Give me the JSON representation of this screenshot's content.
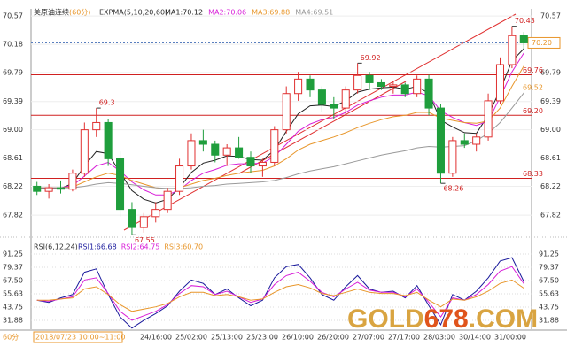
{
  "chart_data": {
    "type": "candlestick",
    "symbol": "美原油连续",
    "period": "(60分)",
    "indicator": "EXPMA(5,10,20,60)",
    "candles": [
      [
        68.22,
        68.28,
        68.1,
        68.15
      ],
      [
        68.15,
        68.25,
        68.05,
        68.2
      ],
      [
        68.2,
        68.3,
        68.12,
        68.18
      ],
      [
        68.18,
        68.45,
        68.15,
        68.4
      ],
      [
        68.4,
        69.1,
        68.35,
        69.0
      ],
      [
        69.0,
        69.3,
        68.9,
        69.1
      ],
      [
        69.1,
        69.15,
        68.5,
        68.6
      ],
      [
        68.6,
        68.7,
        67.8,
        67.9
      ],
      [
        67.9,
        68.0,
        67.55,
        67.65
      ],
      [
        67.65,
        67.85,
        67.58,
        67.8
      ],
      [
        67.8,
        68.0,
        67.72,
        67.9
      ],
      [
        67.9,
        68.2,
        67.85,
        68.15
      ],
      [
        68.15,
        68.6,
        68.1,
        68.5
      ],
      [
        68.5,
        68.95,
        68.45,
        68.85
      ],
      [
        68.85,
        69.0,
        68.7,
        68.8
      ],
      [
        68.8,
        68.85,
        68.55,
        68.65
      ],
      [
        68.65,
        68.8,
        68.5,
        68.75
      ],
      [
        68.75,
        68.9,
        68.6,
        68.62
      ],
      [
        68.62,
        68.7,
        68.4,
        68.5
      ],
      [
        68.5,
        68.6,
        68.35,
        68.55
      ],
      [
        68.55,
        69.05,
        68.5,
        69.0
      ],
      [
        69.0,
        69.6,
        68.95,
        69.5
      ],
      [
        69.5,
        69.8,
        69.4,
        69.7
      ],
      [
        69.7,
        69.75,
        69.45,
        69.55
      ],
      [
        69.55,
        69.6,
        69.25,
        69.35
      ],
      [
        69.35,
        69.45,
        69.15,
        69.3
      ],
      [
        69.3,
        69.6,
        69.2,
        69.55
      ],
      [
        69.55,
        69.92,
        69.5,
        69.75
      ],
      [
        69.75,
        69.8,
        69.55,
        69.65
      ],
      [
        69.65,
        69.7,
        69.55,
        69.6
      ],
      [
        69.6,
        69.68,
        69.5,
        69.62
      ],
      [
        69.62,
        69.65,
        69.45,
        69.5
      ],
      [
        69.5,
        69.75,
        69.45,
        69.7
      ],
      [
        69.7,
        69.76,
        69.2,
        69.3
      ],
      [
        69.3,
        69.35,
        68.26,
        68.4
      ],
      [
        68.4,
        68.9,
        68.35,
        68.85
      ],
      [
        68.85,
        68.95,
        68.75,
        68.8
      ],
      [
        68.8,
        68.95,
        68.7,
        68.9
      ],
      [
        68.9,
        69.5,
        68.85,
        69.4
      ],
      [
        69.4,
        70.0,
        69.35,
        69.9
      ],
      [
        69.9,
        70.43,
        69.85,
        70.3
      ],
      [
        70.3,
        70.35,
        70.1,
        70.2
      ]
    ],
    "up_color": "#e03030",
    "down_color": "#1f9e3c",
    "series": [
      {
        "name": "MA1:70.12",
        "color": "#222222",
        "values": [
          68.2,
          68.19,
          68.19,
          68.26,
          68.5,
          68.7,
          68.67,
          68.41,
          68.16,
          68.04,
          67.99,
          68.04,
          68.2,
          68.41,
          68.54,
          68.58,
          68.64,
          68.63,
          68.59,
          68.58,
          68.72,
          68.98,
          69.22,
          69.33,
          69.34,
          69.32,
          69.4,
          69.52,
          69.56,
          69.58,
          69.59,
          69.56,
          69.6,
          69.5,
          69.13,
          69.04,
          68.96,
          68.95,
          69.2,
          69.55,
          69.95,
          70.12
        ]
      },
      {
        "name": "MA2:70.06",
        "color": "#d81ed8",
        "values": [
          68.2,
          68.2,
          68.2,
          68.23,
          68.36,
          68.5,
          68.55,
          68.43,
          68.28,
          68.17,
          68.1,
          68.1,
          68.17,
          68.3,
          68.4,
          68.45,
          68.51,
          68.53,
          68.53,
          68.54,
          68.63,
          68.8,
          68.98,
          69.08,
          69.14,
          69.17,
          69.24,
          69.34,
          69.4,
          69.45,
          69.48,
          69.48,
          69.52,
          69.47,
          69.26,
          69.17,
          69.1,
          69.06,
          69.12,
          69.45,
          69.8,
          70.06
        ]
      },
      {
        "name": "MA3:69.88",
        "color": "#e8962a",
        "values": [
          68.2,
          68.2,
          68.2,
          68.21,
          68.28,
          68.35,
          68.4,
          68.37,
          68.3,
          68.25,
          68.2,
          68.18,
          68.2,
          68.25,
          68.3,
          68.33,
          68.37,
          68.4,
          68.42,
          68.44,
          68.5,
          68.6,
          68.72,
          68.8,
          68.85,
          68.9,
          68.96,
          69.03,
          69.09,
          69.14,
          69.18,
          69.2,
          69.24,
          69.24,
          69.16,
          69.13,
          69.1,
          69.09,
          69.12,
          69.3,
          69.6,
          69.88
        ]
      },
      {
        "name": "MA4:69.51",
        "color": "#9a9a9a",
        "values": [
          68.2,
          68.2,
          68.2,
          68.2,
          68.22,
          68.25,
          68.27,
          68.26,
          68.24,
          68.22,
          68.2,
          68.19,
          68.19,
          68.2,
          68.22,
          68.23,
          68.25,
          68.26,
          68.27,
          68.28,
          68.3,
          68.34,
          68.39,
          68.43,
          68.46,
          68.49,
          68.53,
          68.57,
          68.61,
          68.65,
          68.68,
          68.71,
          68.75,
          68.77,
          68.76,
          68.77,
          68.78,
          68.85,
          68.95,
          69.1,
          69.3,
          69.51
        ]
      }
    ],
    "ylim": [
      67.59,
      70.67
    ],
    "yticks": [
      67.82,
      68.22,
      68.61,
      {
        "value": 69,
        "label": "69.00"
      },
      69.39,
      69.79,
      70.18,
      70.57
    ],
    "levels": [
      69.76,
      {
        "value": 69.2,
        "label": "69.20"
      },
      68.33
    ],
    "level_color": "#d02020",
    "last": {
      "value": 70.2,
      "label": "70.20"
    },
    "ma_label": 69.52,
    "annotations": [
      69.3,
      69.92,
      70.43,
      68.26,
      67.55
    ],
    "rsi": {
      "title": "RSI(6,12,24)",
      "series": [
        {
          "name": "RSI1:66.68",
          "color": "#1a1a9c",
          "values": [
            50,
            48,
            52,
            55,
            75,
            78,
            55,
            35,
            25,
            32,
            38,
            45,
            58,
            68,
            65,
            55,
            60,
            52,
            45,
            50,
            70,
            80,
            82,
            70,
            55,
            50,
            62,
            72,
            60,
            57,
            58,
            52,
            63,
            45,
            28,
            55,
            50,
            58,
            70,
            85,
            88,
            66.68
          ]
        },
        {
          "name": "RSI2:64.75",
          "color": "#d81ed8",
          "values": [
            50,
            49,
            51,
            53,
            68,
            70,
            56,
            40,
            32,
            36,
            40,
            46,
            56,
            63,
            62,
            55,
            58,
            53,
            48,
            51,
            64,
            72,
            75,
            67,
            57,
            53,
            60,
            66,
            59,
            57,
            57,
            53,
            60,
            48,
            35,
            52,
            50,
            55,
            64,
            76,
            80,
            64.75
          ]
        },
        {
          "name": "RSI3:60.70",
          "color": "#e8962a",
          "values": [
            50,
            50,
            51,
            52,
            60,
            62,
            55,
            46,
            40,
            42,
            44,
            47,
            53,
            57,
            57,
            54,
            55,
            53,
            50,
            51,
            57,
            62,
            64,
            61,
            56,
            54,
            57,
            60,
            57,
            56,
            56,
            54,
            57,
            50,
            44,
            51,
            50,
            53,
            58,
            65,
            68,
            60.7
          ]
        }
      ],
      "ylim": [
        24,
        98.4
      ],
      "yticks": [
        91.25,
        79.37,
        {
          "value": 67.5,
          "label": "67.50"
        },
        55.63,
        43.75,
        31.88
      ]
    },
    "period_label": "60分",
    "x_labels": [
      "2018/07/23 10:00~11:00",
      "24/16:00",
      "25/02:00",
      "25/13:00",
      "25/23:00",
      "26/10:00",
      "26/20:00",
      "27/07:00",
      "27/17:00",
      "28/03:00",
      "30/14:00",
      "31/00:00"
    ],
    "watermark": [
      "GOLD",
      "678",
      ".COM"
    ]
  }
}
